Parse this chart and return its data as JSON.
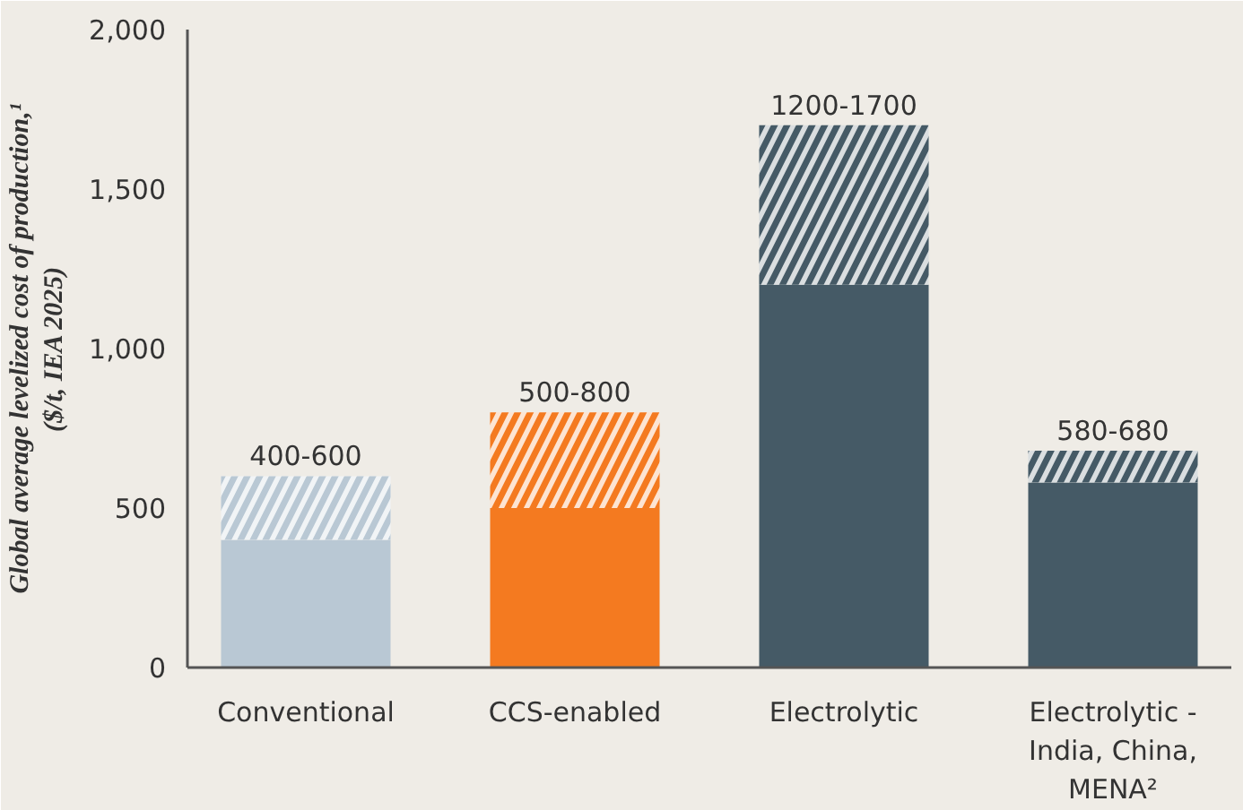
{
  "chart_data": {
    "type": "bar",
    "stacked": true,
    "categories": [
      "Conventional",
      "CCS-enabled",
      "Electrolytic",
      "Electrolytic - India, China, MENA²"
    ],
    "series": [
      {
        "colors": [
          "#b9c8d4",
          "#f47a20",
          "#455a66",
          "#455a66"
        ],
        "values": [
          400,
          500,
          1200,
          580
        ]
      },
      {
        "colors": [
          "#b9c8d4",
          "#f47a20",
          "#455a66",
          "#455a66"
        ],
        "values": [
          200,
          300,
          500,
          100
        ]
      }
    ],
    "totals": [
      "400-600",
      "500-800",
      "1200-1700",
      "580-680"
    ],
    "ylabel": "Global average levelized cost of production,¹\n($/t, IEA 2025)",
    "ylim": [
      0,
      2000
    ],
    "yticks": [
      0,
      500,
      {
        "value": 1000,
        "label": "1,000"
      },
      {
        "value": 1500,
        "label": "1,500"
      },
      {
        "value": 2000,
        "label": "2,000"
      }
    ],
    "grid": false
  }
}
